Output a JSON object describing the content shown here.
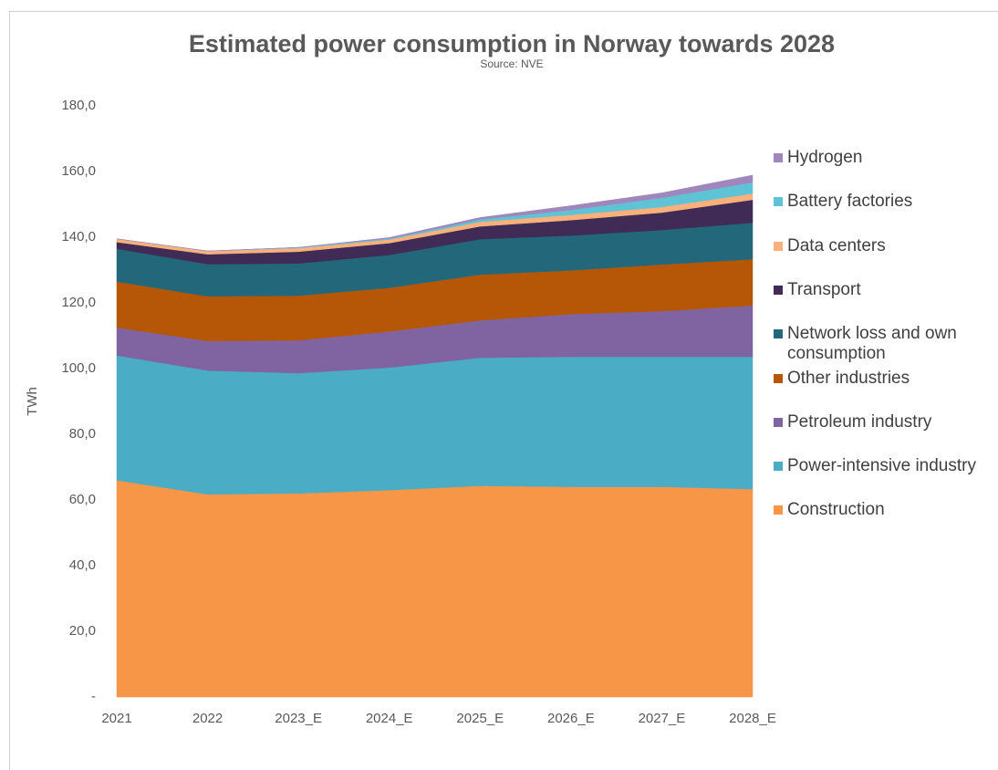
{
  "chart_data": {
    "type": "stacked_area",
    "title": "Estimated power consumption in Norway towards 2028",
    "subtitle": "Source: NVE",
    "y_label": "TWh",
    "categories": [
      "2021",
      "2022",
      "2023_E",
      "2024_E",
      "2025_E",
      "2026_E",
      "2027_E",
      "2028_E"
    ],
    "series": [
      {
        "name": "Construction",
        "color": "#f79646",
        "values": [
          66,
          61.7,
          62,
          63,
          64.3,
          64,
          64,
          63.3
        ]
      },
      {
        "name": "Power-intensive industry",
        "color": "#4bacc6",
        "values": [
          38,
          37.7,
          36.6,
          37.3,
          39,
          39.6,
          39.6,
          40.3
        ]
      },
      {
        "name": "Petroleum industry",
        "color": "#8064a2",
        "values": [
          8.5,
          9,
          10,
          11,
          11.4,
          13,
          13.9,
          15.6
        ]
      },
      {
        "name": "Other industries",
        "color": "#b65708",
        "values": [
          14,
          13.6,
          13.6,
          13.3,
          13.9,
          13.3,
          14.2,
          14.1
        ]
      },
      {
        "name": "Network loss and own consumption",
        "color": "#23687a",
        "values": [
          10,
          9.8,
          9.8,
          10,
          10.8,
          10.6,
          10.5,
          11.1
        ]
      },
      {
        "name": "Transport",
        "color": "#3f2b56",
        "values": [
          2,
          3,
          3.6,
          3.6,
          3.9,
          4.7,
          5.3,
          7
        ]
      },
      {
        "name": "Data centers",
        "color": "#fab07a",
        "values": [
          1,
          1,
          1.1,
          1.1,
          1.4,
          1.6,
          1.7,
          1.9
        ]
      },
      {
        "name": "Battery factories",
        "color": "#5fc3d6",
        "values": [
          0,
          0,
          0.2,
          0.3,
          0.7,
          1.5,
          2.8,
          3.4
        ]
      },
      {
        "name": "Hydrogen",
        "color": "#9f87bd",
        "values": [
          0,
          0,
          0,
          0.3,
          0.6,
          1.3,
          1.5,
          2.2
        ]
      }
    ],
    "ylim": [
      0,
      180
    ],
    "yticks": [
      {
        "value": 0,
        "label": "-"
      },
      {
        "value": 20,
        "label": "20,0"
      },
      {
        "value": 40,
        "label": "40,0"
      },
      {
        "value": 60,
        "label": "60,0"
      },
      {
        "value": 80,
        "label": "80,0"
      },
      {
        "value": 100,
        "label": "100,0"
      },
      {
        "value": 120,
        "label": "120,0"
      },
      {
        "value": 140,
        "label": "140,0"
      },
      {
        "value": 160,
        "label": "160,0"
      },
      {
        "value": 180,
        "label": "180,0"
      }
    ],
    "legend": "right"
  }
}
